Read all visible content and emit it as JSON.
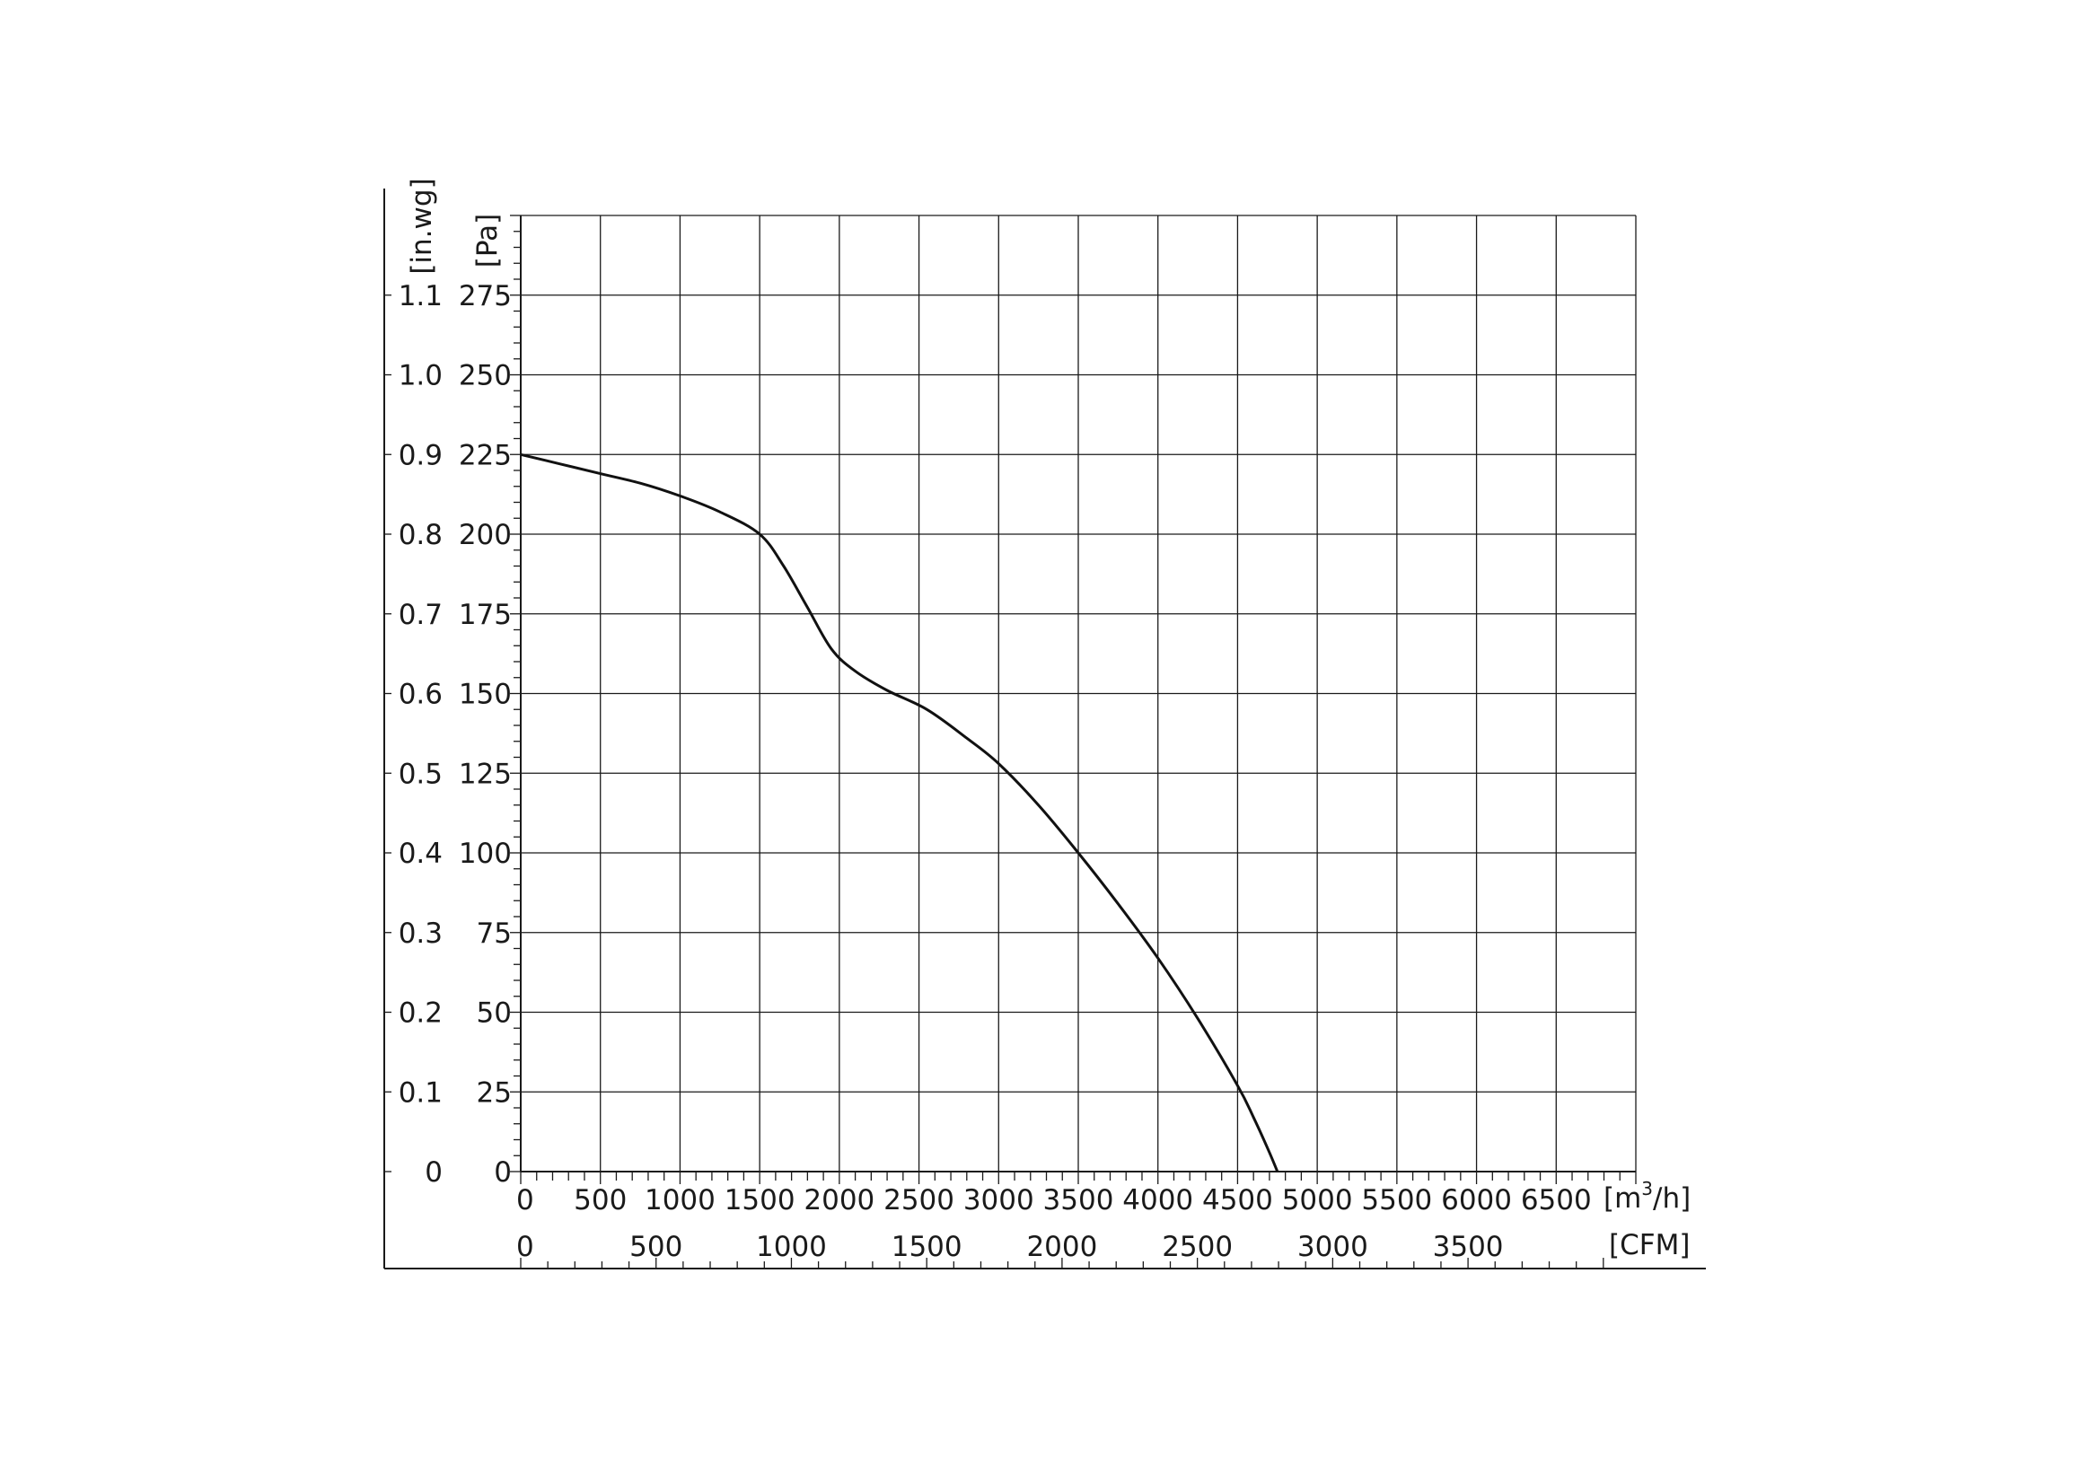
{
  "chart_data": {
    "type": "line",
    "title": "",
    "xlabel": "[m³/h]",
    "xlabel_parts": {
      "base": "[m",
      "sup": "3",
      "tail": "/h]"
    },
    "x2label": "[CFM]",
    "ylabel": "[Pa]",
    "y2label": "[in.wg]",
    "xlim": [
      0,
      7000
    ],
    "ylim": [
      0,
      300
    ],
    "x2lim": [
      0,
      4120
    ],
    "x_ticks": [
      0,
      500,
      1000,
      1500,
      2000,
      2500,
      3000,
      3500,
      4000,
      4500,
      5000,
      5500,
      6000,
      6500
    ],
    "x_tick_labels": [
      "0",
      "500",
      "1000",
      "1500",
      "2000",
      "2500",
      "3000",
      "3500",
      "4000",
      "4500",
      "5000",
      "5500",
      "6000",
      "6500"
    ],
    "x2_ticks": [
      0,
      500,
      1000,
      1500,
      2000,
      2500,
      3000,
      3500
    ],
    "x2_tick_labels": [
      "0",
      "500",
      "1000",
      "1500",
      "2000",
      "2500",
      "3000",
      "3500"
    ],
    "y_ticks": [
      0,
      25,
      50,
      75,
      100,
      125,
      150,
      175,
      200,
      225,
      250,
      275
    ],
    "y_tick_labels": [
      "0",
      "25",
      "50",
      "75",
      "100",
      "125",
      "150",
      "175",
      "200",
      "225",
      "250",
      "275"
    ],
    "y2_tick_labels": [
      "0",
      "0.1",
      "0.2",
      "0.3",
      "0.4",
      "0.5",
      "0.6",
      "0.7",
      "0.8",
      "0.9",
      "1.0",
      "1.1"
    ],
    "grid": true,
    "series": [
      {
        "x": [
          0,
          250,
          500,
          750,
          1000,
          1250,
          1500,
          1650,
          1800,
          1950,
          2100,
          2300,
          2550,
          2800,
          3000,
          3250,
          3500,
          3750,
          4000,
          4250,
          4500,
          4600,
          4700,
          4750
        ],
        "y": [
          225,
          222,
          219,
          216,
          212,
          207,
          200,
          190,
          177,
          164,
          157,
          151,
          145,
          136,
          128,
          115,
          100,
          84,
          67,
          48,
          27,
          17,
          6,
          0
        ]
      }
    ]
  }
}
